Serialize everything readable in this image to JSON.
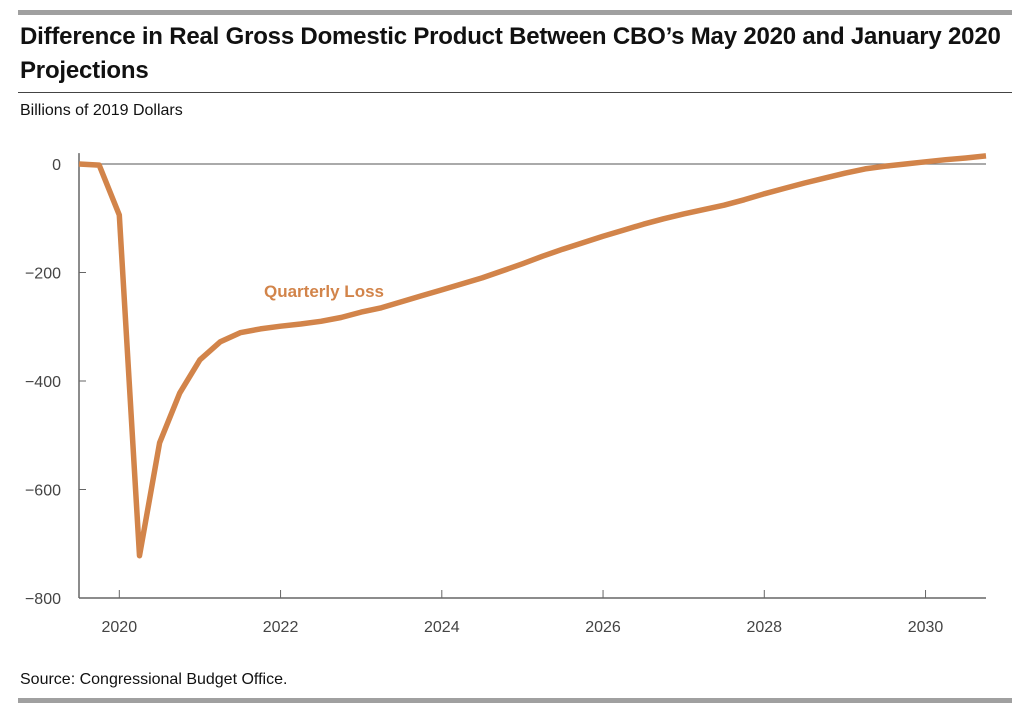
{
  "title": "Difference in Real Gross Domestic Product Between CBO’s May 2020 and January 2020 Projections",
  "subtitle": "Billions of 2019 Dollars",
  "source": "Source: Congressional Budget Office.",
  "chart_data": {
    "type": "line",
    "title": "Difference in Real Gross Domestic Product Between CBO’s May 2020 and January 2020 Projections",
    "ylabel": "Billions of 2019 Dollars",
    "xlabel": "",
    "xlim": [
      2019.5,
      2030.75
    ],
    "ylim": [
      -800,
      20
    ],
    "yticks": [
      0,
      -200,
      -400,
      -600,
      -800
    ],
    "ytick_labels": [
      "0",
      "−200",
      "−400",
      "−600",
      "−800"
    ],
    "xticks": [
      2020,
      2022,
      2024,
      2026,
      2028,
      2030
    ],
    "xtick_labels": [
      "2020",
      "2022",
      "2024",
      "2026",
      "2028",
      "2030"
    ],
    "grid": false,
    "series": [
      {
        "name": "Quarterly Loss",
        "color": "#d2844a",
        "x": [
          2019.5,
          2019.75,
          2020,
          2020.25,
          2020.5,
          2020.75,
          2021,
          2021.25,
          2021.5,
          2021.75,
          2022,
          2022.25,
          2022.5,
          2022.75,
          2023,
          2023.25,
          2023.5,
          2023.75,
          2024,
          2024.25,
          2024.5,
          2024.75,
          2025,
          2025.25,
          2025.5,
          2025.75,
          2026,
          2026.25,
          2026.5,
          2026.75,
          2027,
          2027.25,
          2027.5,
          2027.75,
          2028,
          2028.25,
          2028.5,
          2028.75,
          2029,
          2029.25,
          2029.5,
          2029.75,
          2030,
          2030.25,
          2030.5,
          2030.75
        ],
        "values": [
          0,
          -2,
          -94,
          -722,
          -514,
          -422,
          -361,
          -328,
          -311,
          -304,
          -299,
          -295,
          -290,
          -283,
          -273,
          -265,
          -254,
          -243,
          -232,
          -221,
          -210,
          -197,
          -184,
          -170,
          -157,
          -145,
          -133,
          -122,
          -111,
          -101,
          -92,
          -84,
          -76,
          -66,
          -55,
          -45,
          -35,
          -26,
          -17,
          -9,
          -4,
          0,
          4,
          8,
          11,
          15
        ]
      }
    ]
  }
}
